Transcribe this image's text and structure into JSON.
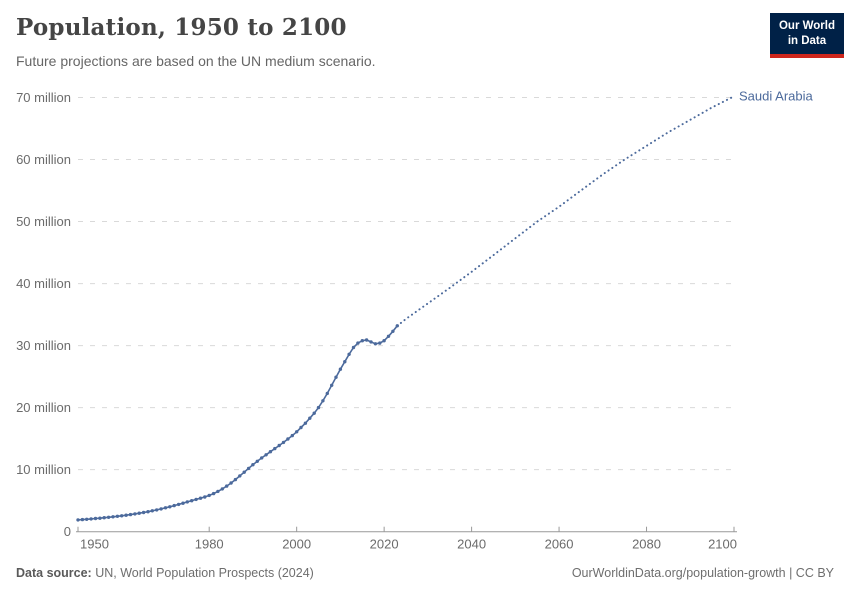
{
  "header": {
    "title": "Population, 1950 to 2100",
    "subtitle": "Future projections are based on the UN medium scenario.",
    "logo": {
      "line1": "Our World",
      "line2": "in Data",
      "bg_color": "#002147",
      "accent_color": "#CE261C"
    }
  },
  "footer": {
    "source_label": "Data source:",
    "source_text": " UN, World Population Prospects (2024)",
    "link_text": "OurWorldinData.org/population-growth | CC BY"
  },
  "chart_data": {
    "type": "line",
    "title": "Population, 1950 to 2100",
    "entity": "Saudi Arabia",
    "end_label": "Saudi Arabia",
    "grid": true,
    "line_color": "#4C6A9C",
    "grid_color": "#d9d9d9",
    "axis_color": "#999999",
    "tick_label_color": "#6b6b6b",
    "xlim": [
      1950,
      2100
    ],
    "ylim": [
      0,
      70
    ],
    "x_ticks": [
      1950,
      1980,
      2000,
      2020,
      2040,
      2060,
      2080,
      2100
    ],
    "y_ticks": [
      0,
      10,
      20,
      30,
      40,
      50,
      60,
      70
    ],
    "y_tick_labels": [
      "0",
      "10 million",
      "20 million",
      "30 million",
      "40 million",
      "50 million",
      "60 million",
      "70 million"
    ],
    "unit": "million people",
    "series": [
      {
        "name": "Saudi Arabia — historical estimates",
        "style": "solid_with_markers",
        "start_year": 1950,
        "values": [
          1.9,
          1.95,
          2.0,
          2.06,
          2.12,
          2.18,
          2.25,
          2.32,
          2.4,
          2.48,
          2.57,
          2.66,
          2.76,
          2.87,
          2.98,
          3.1,
          3.23,
          3.37,
          3.52,
          3.68,
          3.85,
          4.02,
          4.21,
          4.4,
          4.6,
          4.8,
          5.0,
          5.2,
          5.4,
          5.6,
          5.85,
          6.15,
          6.5,
          6.9,
          7.35,
          7.85,
          8.4,
          9.0,
          9.6,
          10.2,
          10.8,
          11.35,
          11.9,
          12.4,
          12.9,
          13.4,
          13.9,
          14.4,
          14.95,
          15.5,
          16.1,
          16.8,
          17.5,
          18.3,
          19.1,
          20.0,
          21.1,
          22.3,
          23.6,
          24.9,
          26.2,
          27.4,
          28.6,
          29.7,
          30.4,
          30.8,
          30.9,
          30.6,
          30.3,
          30.4,
          30.8,
          31.5,
          32.3,
          33.2
        ]
      },
      {
        "name": "Saudi Arabia — UN medium scenario projection",
        "style": "dotted",
        "points": [
          [
            2023,
            33.2
          ],
          [
            2025,
            34.3
          ],
          [
            2030,
            36.8
          ],
          [
            2035,
            39.3
          ],
          [
            2040,
            41.9
          ],
          [
            2045,
            44.6
          ],
          [
            2050,
            47.3
          ],
          [
            2055,
            50.0
          ],
          [
            2060,
            52.4
          ],
          [
            2065,
            55.0
          ],
          [
            2070,
            57.6
          ],
          [
            2075,
            60.0
          ],
          [
            2080,
            62.2
          ],
          [
            2085,
            64.4
          ],
          [
            2090,
            66.4
          ],
          [
            2095,
            68.4
          ],
          [
            2100,
            70.2
          ]
        ]
      }
    ]
  }
}
